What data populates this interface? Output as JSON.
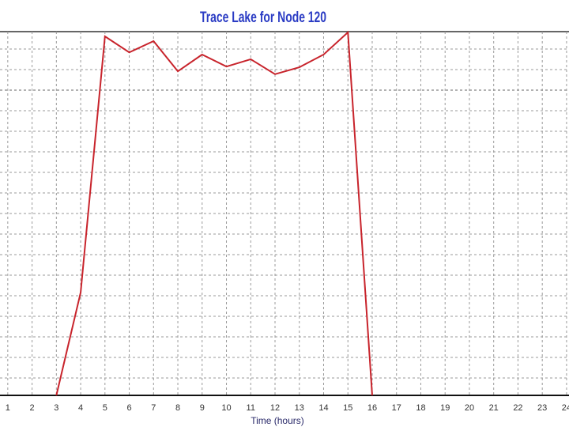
{
  "chart_data": {
    "type": "line",
    "title": "Trace Lake for Node 120",
    "x_label": "Time (hours)",
    "x": [
      3,
      4,
      5,
      6,
      7,
      8,
      9,
      10,
      11,
      12,
      13,
      14,
      15,
      16
    ],
    "series": [
      {
        "color": "#c8242c",
        "values": [
          0,
          28.3,
          98.7,
          94.3,
          97.4,
          89.1,
          93.7,
          90.4,
          92.4,
          88.3,
          90.2,
          93.7,
          99.8,
          0
        ]
      }
    ],
    "xlim": [
      0.68,
      24.1
    ],
    "xticks": [
      1,
      2,
      3,
      4,
      5,
      6,
      7,
      8,
      9,
      10,
      11,
      12,
      13,
      14,
      15,
      16,
      17,
      18,
      19,
      20,
      21,
      22,
      23,
      24
    ],
    "ylim": [
      0,
      100
    ],
    "grid": true
  }
}
